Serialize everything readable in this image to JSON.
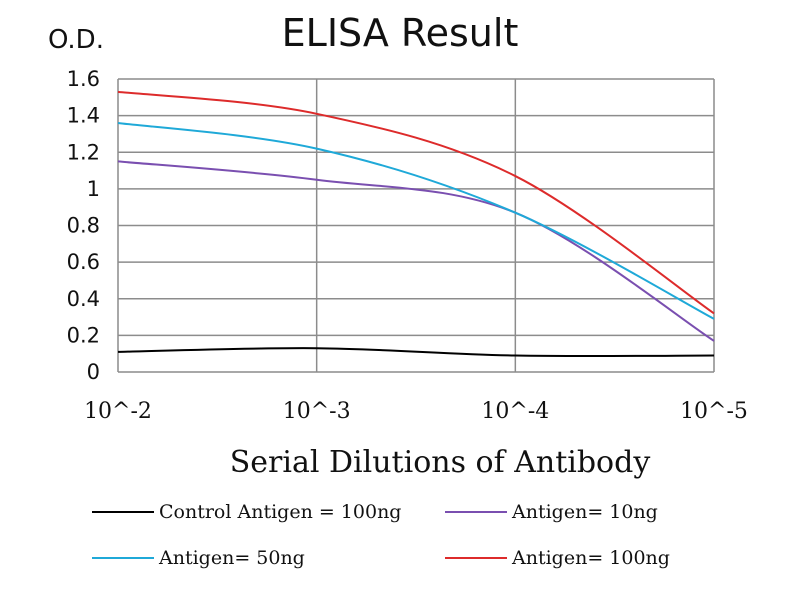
{
  "chart_data": {
    "type": "line",
    "title": "ELISA Result",
    "ylabel": "O.D.",
    "xlabel": "Serial Dilutions  of Antibody",
    "categories": [
      "10^-2",
      "10^-3",
      "10^-4",
      "10^-5"
    ],
    "ylim": [
      0,
      1.6
    ],
    "yticks": [
      "0",
      "0.2",
      "0.4",
      "0.6",
      "0.8",
      "1",
      "1.2",
      "1.4",
      "1.6"
    ],
    "grid": true,
    "legend_position": "bottom",
    "series": [
      {
        "name": "Control Antigen = 100ng",
        "color": "#000000",
        "values": [
          0.11,
          0.13,
          0.09,
          0.09
        ]
      },
      {
        "name": "Antigen= 10ng",
        "color": "#7a4fb0",
        "values": [
          1.15,
          1.05,
          0.87,
          0.17
        ]
      },
      {
        "name": "Antigen= 50ng",
        "color": "#1fa9d8",
        "values": [
          1.36,
          1.22,
          0.87,
          0.29
        ]
      },
      {
        "name": "Antigen= 100ng",
        "color": "#dd2b2b",
        "values": [
          1.53,
          1.41,
          1.07,
          0.32
        ]
      }
    ]
  }
}
